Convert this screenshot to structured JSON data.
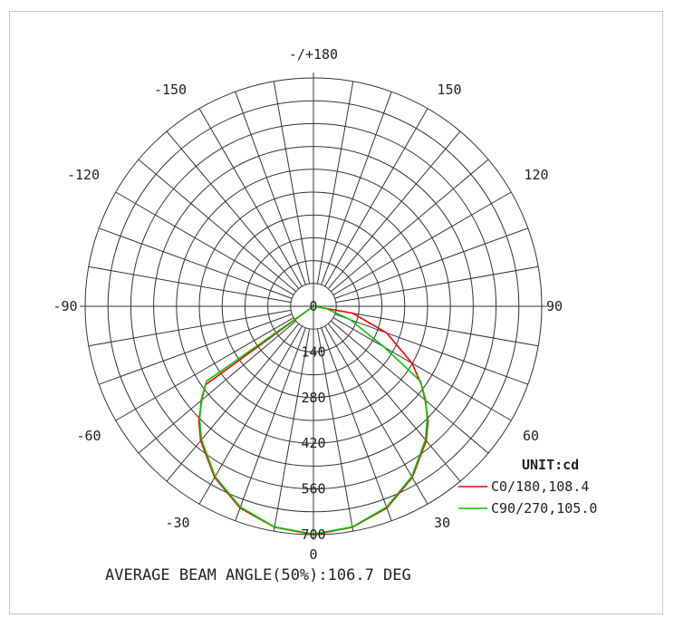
{
  "chart_data": {
    "type": "polar",
    "subtitle": "AVERAGE BEAM ANGLE(50%):106.7 DEG",
    "unit_label": "UNIT:cd",
    "angle_labels": [
      {
        "angle": 180,
        "text": "-/+180"
      },
      {
        "angle": 150,
        "text": "150"
      },
      {
        "angle": -150,
        "text": "-150"
      },
      {
        "angle": 120,
        "text": "120"
      },
      {
        "angle": -120,
        "text": "-120"
      },
      {
        "angle": 90,
        "text": "90"
      },
      {
        "angle": -90,
        "text": "-90"
      },
      {
        "angle": 60,
        "text": "60"
      },
      {
        "angle": -60,
        "text": "-60"
      },
      {
        "angle": 30,
        "text": "30"
      },
      {
        "angle": -30,
        "text": "-30"
      },
      {
        "angle": 0,
        "text": "0"
      }
    ],
    "radial_ticks": [
      0,
      140,
      280,
      420,
      560,
      700
    ],
    "radial_tick_labels": [
      "0",
      "140",
      "280",
      "420",
      "560",
      "700"
    ],
    "r_max": 700,
    "radial_step": 70,
    "angular_step": 10,
    "series": [
      {
        "name": "C0/180,108.4",
        "color": "#ff0000",
        "angles": [
          -54,
          -50,
          -45,
          -40,
          -30,
          -20,
          -10,
          0,
          10,
          20,
          30,
          40,
          45,
          50,
          54,
          60,
          70,
          80,
          90
        ],
        "values": [
          409,
          447,
          497,
          538,
          606,
          658,
          688,
          700,
          688,
          658,
          606,
          538,
          497,
          447,
          409,
          349,
          239,
          122,
          0
        ]
      },
      {
        "name": "C90/270,105.0",
        "color": "#00cc00",
        "angles": [
          -55,
          -50,
          -45,
          -40,
          -30,
          -20,
          -10,
          0,
          10,
          20,
          30,
          40,
          45,
          50,
          55,
          60,
          70,
          80,
          90
        ],
        "values": [
          401,
          450,
          493,
          534,
          603,
          655,
          687,
          698,
          687,
          655,
          603,
          534,
          493,
          450,
          401,
          250,
          120,
          40,
          0
        ]
      }
    ]
  }
}
